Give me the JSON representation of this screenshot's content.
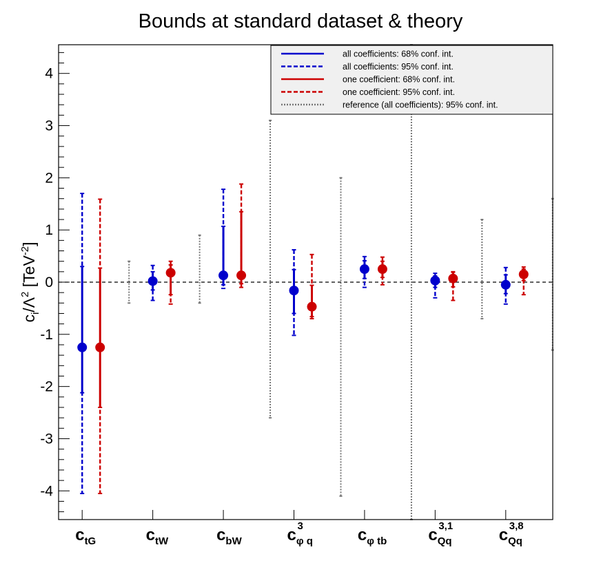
{
  "chart_data": {
    "type": "errorbar",
    "title": "Bounds at standard dataset & theory",
    "ylabel": {
      "base": "c",
      "sub": "i",
      "mid": "/Λ",
      "sup1": "2",
      "unit": " [TeV",
      "sup2": "-2",
      "close": "]"
    },
    "ylim": [
      -4.55,
      4.55
    ],
    "yticks": [
      -4,
      -3,
      -2,
      -1,
      0,
      1,
      2,
      3,
      4
    ],
    "ytick_labels": [
      "-4",
      "-3",
      "-2",
      "-1",
      "0",
      "1",
      "2",
      "3",
      "4"
    ],
    "categories": [
      {
        "main": "c",
        "sub": "tG",
        "sup": ""
      },
      {
        "main": "c",
        "sub": "tW",
        "sup": ""
      },
      {
        "main": "c",
        "sub": "bW",
        "sup": ""
      },
      {
        "main": "c",
        "sub": "φ q",
        "sup": "3"
      },
      {
        "main": "c",
        "sub": "φ tb",
        "sup": ""
      },
      {
        "main": "c",
        "sub": "Qq",
        "sup": "3,1"
      },
      {
        "main": "c",
        "sub": "Qq",
        "sup": "3,8"
      }
    ],
    "colors": {
      "all": "#0000cc",
      "one": "#cc0000",
      "reference": "#777777"
    },
    "series": [
      {
        "name": "all coefficients",
        "central": [
          -1.25,
          0.02,
          0.13,
          -0.16,
          0.25,
          0.03,
          -0.05
        ],
        "ci68": [
          [
            -2.12,
            0.3
          ],
          [
            -0.15,
            0.2
          ],
          [
            -0.05,
            1.07
          ],
          [
            -0.6,
            0.24
          ],
          [
            0.07,
            0.41
          ],
          [
            -0.1,
            0.12
          ],
          [
            -0.22,
            0.14
          ]
        ],
        "ci95": [
          [
            -4.05,
            1.7
          ],
          [
            -0.35,
            0.32
          ],
          [
            -0.12,
            1.78
          ],
          [
            -1.02,
            0.62
          ],
          [
            -0.1,
            0.49
          ],
          [
            -0.3,
            0.17
          ],
          [
            -0.42,
            0.28
          ]
        ]
      },
      {
        "name": "one coefficient",
        "central": [
          -1.25,
          0.18,
          0.13,
          -0.47,
          0.25,
          0.07,
          0.15
        ],
        "ci68": [
          [
            -2.4,
            0.27
          ],
          [
            -0.24,
            0.33
          ],
          [
            -0.03,
            1.35
          ],
          [
            -0.66,
            -0.06
          ],
          [
            0.09,
            0.4
          ],
          [
            -0.09,
            0.19
          ],
          [
            0.03,
            0.25
          ]
        ],
        "ci95": [
          [
            -4.05,
            1.59
          ],
          [
            -0.42,
            0.4
          ],
          [
            -0.1,
            1.88
          ],
          [
            -0.7,
            0.53
          ],
          [
            -0.05,
            0.48
          ],
          [
            -0.35,
            0.2
          ],
          [
            -0.24,
            0.29
          ]
        ]
      },
      {
        "name": "reference (all coefficients)",
        "ci95": [
          [
            -0.4,
            0.4
          ],
          [
            -0.4,
            0.9
          ],
          [
            -2.6,
            3.1
          ],
          [
            -4.1,
            2.0
          ],
          [
            -4.6,
            4.6
          ],
          [
            -0.7,
            1.2
          ],
          [
            -1.3,
            1.6
          ]
        ]
      }
    ],
    "zero_line": true,
    "legend": {
      "position": "top-right",
      "entries": [
        {
          "label": "all coefficients: 68% conf. int.",
          "series": "all",
          "style": "solid"
        },
        {
          "label": "all coefficients: 95% conf. int.",
          "series": "all",
          "style": "dashed"
        },
        {
          "label": "one coefficient: 68% conf. int.",
          "series": "one",
          "style": "solid"
        },
        {
          "label": "one coefficient: 95% conf. int.",
          "series": "one",
          "style": "dashed"
        },
        {
          "label": "reference (all coefficients): 95% conf. int.",
          "series": "reference",
          "style": "dotted"
        }
      ]
    }
  }
}
